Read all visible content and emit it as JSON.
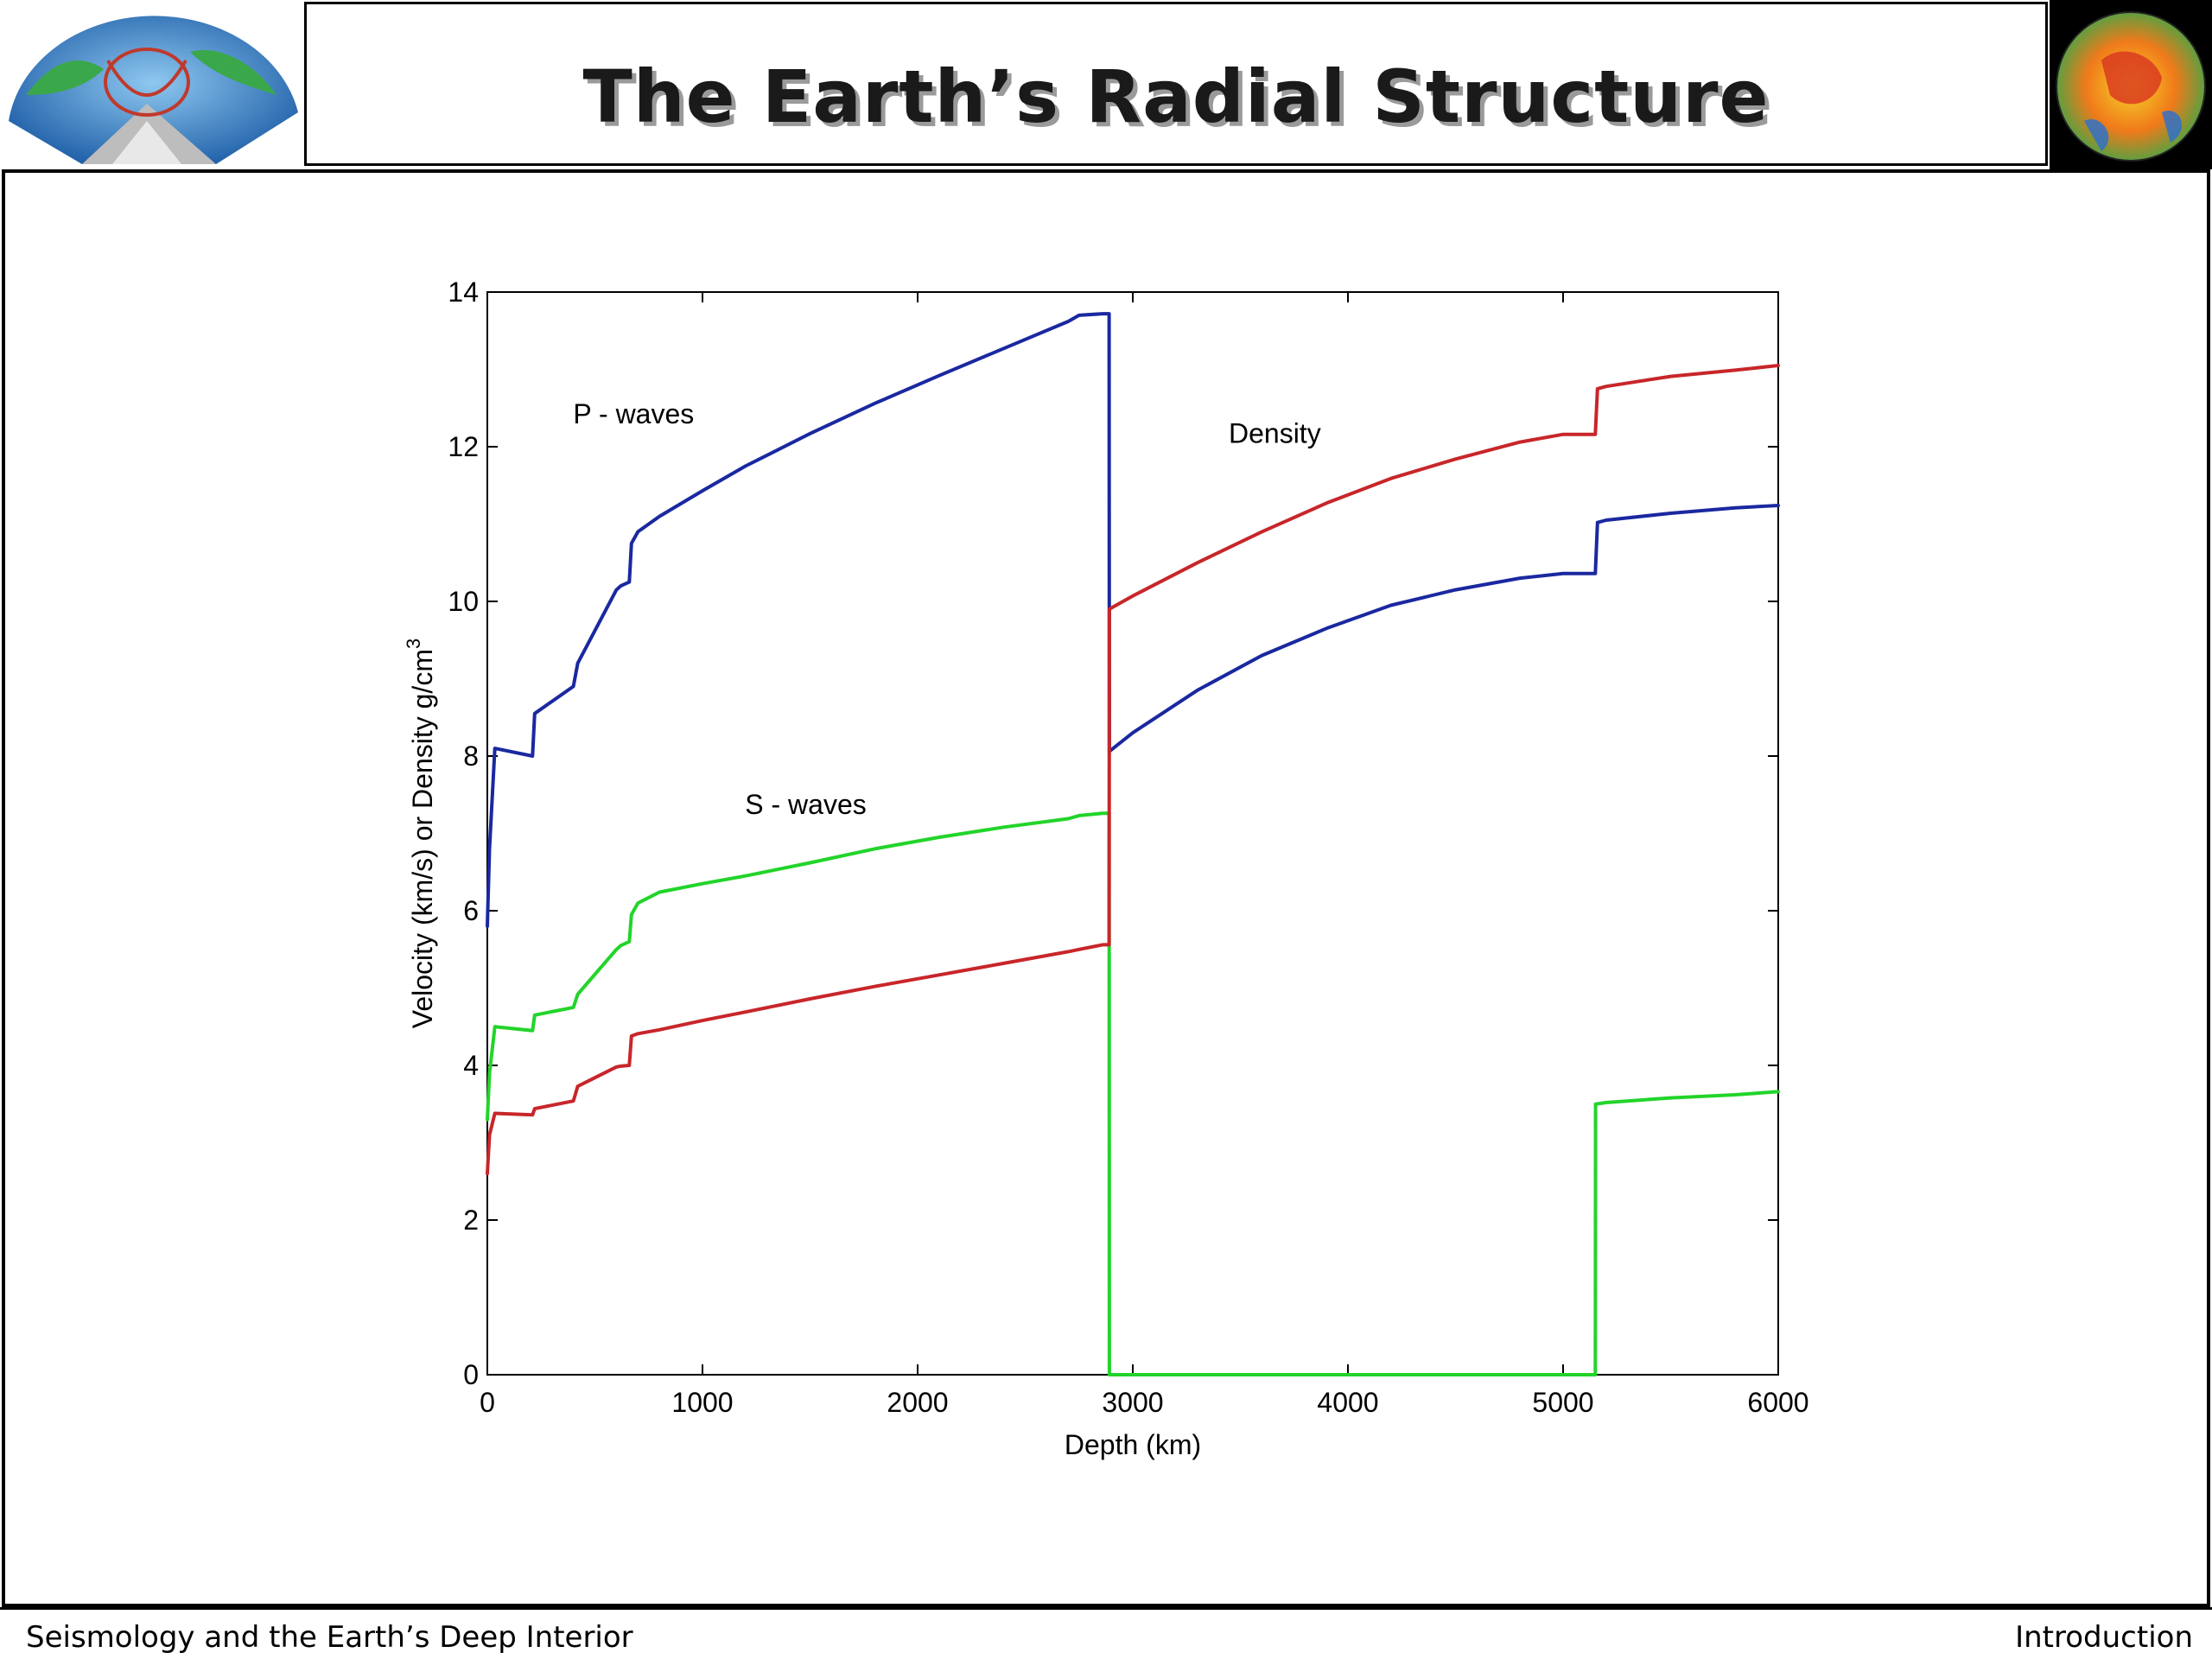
{
  "slide": {
    "title": "The Earth’s Radial Structure",
    "footer_left": "Seismology and the Earth’s Deep Interior",
    "footer_right": "Introduction"
  },
  "chart_data": {
    "type": "line",
    "title": "",
    "xlabel": "Depth (km)",
    "ylabel": "Velocity (km/s) or Density g/cm",
    "ylabel_sup": "3",
    "xlim": [
      0,
      6000
    ],
    "ylim": [
      0,
      14
    ],
    "xticks": [
      0,
      1000,
      2000,
      3000,
      4000,
      5000,
      6000
    ],
    "yticks": [
      0,
      2,
      4,
      6,
      8,
      10,
      12,
      14
    ],
    "grid": false,
    "annotations": [
      {
        "text": "P - waves",
        "x": 680,
        "y": 12.3
      },
      {
        "text": "S - waves",
        "x": 1480,
        "y": 7.25
      },
      {
        "text": "Density",
        "x": 3660,
        "y": 12.05
      }
    ],
    "series": [
      {
        "color": "#1a28a0",
        "x": [
          0,
          10,
          35,
          210,
          220,
          400,
          420,
          600,
          620,
          660,
          670,
          700,
          800,
          1000,
          1200,
          1500,
          1800,
          2100,
          2400,
          2700,
          2750,
          2860,
          2890,
          2891,
          3000,
          3300,
          3600,
          3900,
          4200,
          4500,
          4800,
          5000,
          5150,
          5160,
          5200,
          5500,
          5800,
          6000
        ],
        "y": [
          5.8,
          6.8,
          8.1,
          8.0,
          8.55,
          8.9,
          9.2,
          10.15,
          10.2,
          10.25,
          10.75,
          10.9,
          11.1,
          11.43,
          11.75,
          12.17,
          12.56,
          12.92,
          13.27,
          13.62,
          13.7,
          13.72,
          13.72,
          8.06,
          8.3,
          8.85,
          9.3,
          9.65,
          9.95,
          10.15,
          10.3,
          10.36,
          10.36,
          11.02,
          11.05,
          11.14,
          11.21,
          11.24
        ]
      },
      {
        "color": "#22d42a",
        "x": [
          0,
          10,
          35,
          210,
          220,
          400,
          420,
          600,
          620,
          660,
          670,
          700,
          800,
          1000,
          1200,
          1500,
          1800,
          2100,
          2400,
          2700,
          2750,
          2860,
          2890,
          2891,
          5150,
          5151,
          5200,
          5500,
          5800,
          6000
        ],
        "y": [
          3.3,
          3.9,
          4.5,
          4.45,
          4.65,
          4.75,
          4.92,
          5.5,
          5.55,
          5.6,
          5.95,
          6.1,
          6.24,
          6.35,
          6.45,
          6.62,
          6.8,
          6.95,
          7.08,
          7.19,
          7.23,
          7.26,
          7.26,
          0,
          0,
          3.5,
          3.52,
          3.58,
          3.62,
          3.66
        ]
      },
      {
        "color": "#c8262a",
        "x": [
          0,
          10,
          35,
          210,
          220,
          400,
          420,
          600,
          620,
          660,
          670,
          700,
          800,
          1000,
          1200,
          1500,
          1800,
          2100,
          2400,
          2700,
          2750,
          2860,
          2890,
          2891,
          3000,
          3300,
          3600,
          3900,
          4200,
          4500,
          4800,
          5000,
          5150,
          5160,
          5200,
          5500,
          5800,
          6000
        ],
        "y": [
          2.6,
          3.1,
          3.38,
          3.36,
          3.44,
          3.54,
          3.73,
          3.98,
          3.99,
          4.0,
          4.38,
          4.41,
          4.46,
          4.58,
          4.69,
          4.86,
          5.02,
          5.17,
          5.32,
          5.47,
          5.5,
          5.56,
          5.56,
          9.9,
          10.07,
          10.5,
          10.9,
          11.27,
          11.59,
          11.84,
          12.06,
          12.16,
          12.16,
          12.75,
          12.78,
          12.91,
          12.99,
          13.05
        ]
      }
    ]
  }
}
